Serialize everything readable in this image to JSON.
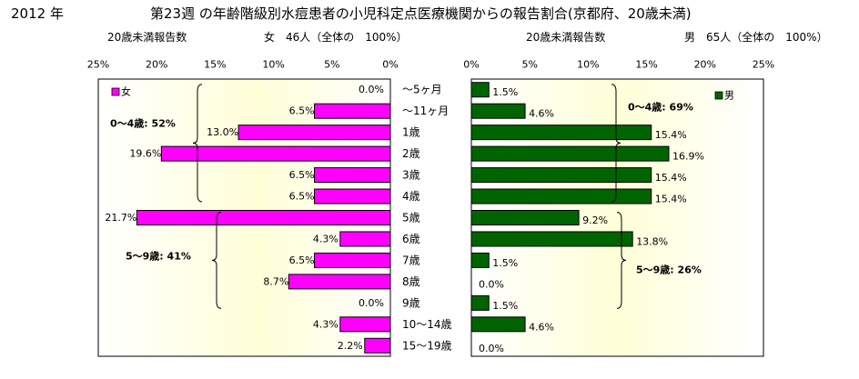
{
  "header": {
    "year": "2012 年",
    "title": "第23週 の年齢階級別水痘患者の小児科定点医療機関からの報告割合(京都府、20歳未満)"
  },
  "left_panel": {
    "report_label": "20歳未満報告数",
    "summary": "女　46人（全体の　100%）"
  },
  "right_panel": {
    "report_label": "20歳未満報告数",
    "summary": "男　65人（全体の　100%）"
  },
  "colors": {
    "female": "#ff00ff",
    "male": "#006400",
    "plot_fill": "#ffffe0"
  },
  "chart_data": [
    {
      "type": "bar",
      "orientation": "horizontal",
      "direction": "right-to-left",
      "categories": [
        "～5ヶ月",
        "～11ヶ月",
        "1歳",
        "2歳",
        "3歳",
        "4歳",
        "5歳",
        "6歳",
        "7歳",
        "8歳",
        "9歳",
        "10～14歳",
        "15～19歳"
      ],
      "series": [
        {
          "name": "女",
          "values": [
            0.0,
            6.5,
            13.0,
            19.6,
            6.5,
            6.5,
            21.7,
            4.3,
            6.5,
            8.7,
            0.0,
            4.3,
            2.2
          ]
        }
      ],
      "value_labels": [
        "0.0%",
        "6.5%",
        "13.0%",
        "19.6%",
        "6.5%",
        "6.5%",
        "21.7%",
        "4.3%",
        "6.5%",
        "8.7%",
        "0.0%",
        "4.3%",
        "2.2%"
      ],
      "xlim": [
        0,
        25
      ],
      "xticks": [
        "25%",
        "20%",
        "15%",
        "10%",
        "5%",
        "0%"
      ],
      "legend": "top-left",
      "annotations": [
        "0～4歳: 52%",
        "5～9歳: 41%"
      ]
    },
    {
      "type": "bar",
      "orientation": "horizontal",
      "direction": "left-to-right",
      "categories": [
        "～5ヶ月",
        "～11ヶ月",
        "1歳",
        "2歳",
        "3歳",
        "4歳",
        "5歳",
        "6歳",
        "7歳",
        "8歳",
        "9歳",
        "10～14歳",
        "15～19歳"
      ],
      "series": [
        {
          "name": "男",
          "values": [
            1.5,
            4.6,
            15.4,
            16.9,
            15.4,
            15.4,
            9.2,
            13.8,
            1.5,
            0.0,
            1.5,
            4.6,
            0.0
          ]
        }
      ],
      "value_labels": [
        "1.5%",
        "4.6%",
        "15.4%",
        "16.9%",
        "15.4%",
        "15.4%",
        "9.2%",
        "13.8%",
        "1.5%",
        "0.0%",
        "1.5%",
        "4.6%",
        "0.0%"
      ],
      "xlim": [
        0,
        25
      ],
      "xticks": [
        "0%",
        "5%",
        "10%",
        "15%",
        "20%",
        "25%"
      ],
      "legend": "top-right",
      "annotations": [
        "0～4歳: 69%",
        "5～9歳: 26%"
      ]
    }
  ]
}
